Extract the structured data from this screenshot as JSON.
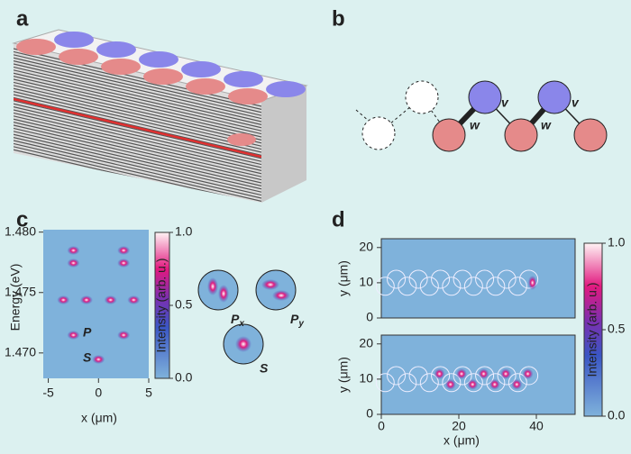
{
  "panels": {
    "a": {
      "label": "a"
    },
    "b": {
      "label": "b",
      "bond_labels": [
        "w",
        "v",
        "w",
        "v"
      ]
    },
    "c": {
      "label": "c",
      "ylabel": "Energy (eV)",
      "xlabel": "x (μm)",
      "xlim": [
        -5.5,
        5
      ],
      "xticks": [
        -5,
        0,
        5
      ],
      "ylim": [
        1.4679,
        1.4802
      ],
      "yticks": [
        {
          "value": 1.48,
          "label": "1.480"
        },
        {
          "value": 1.475,
          "label": "1.475"
        },
        {
          "value": 1.47,
          "label": "1.470"
        }
      ],
      "mode_labels": [
        "P",
        "S"
      ],
      "colorbar": {
        "label": "Intensity (arb. u.)",
        "lim": [
          0,
          1
        ],
        "ticks": [
          {
            "value": 0,
            "label": "0.0"
          },
          {
            "value": 0.5,
            "label": "0.5"
          },
          {
            "value": 1,
            "label": "1.0"
          }
        ]
      },
      "insets": [
        {
          "text": "P",
          "sub": "x"
        },
        {
          "text": "P",
          "sub": "y"
        },
        {
          "text": "S"
        }
      ]
    },
    "d": {
      "label": "d",
      "xlabel": "x (μm)",
      "xlim": [
        0,
        50
      ],
      "xticks": [
        0,
        20,
        40
      ],
      "plots": [
        {
          "ylabel": "y (μm)",
          "ylim": [
            0,
            22.5
          ],
          "yticks": [
            0,
            10,
            20
          ]
        },
        {
          "ylabel": "y (μm)",
          "ylim": [
            0,
            22.5
          ],
          "yticks": [
            0,
            10,
            20
          ]
        }
      ],
      "colorbar": {
        "label": "Intensity (arb. u.)",
        "lim": [
          0,
          1
        ],
        "ticks": [
          {
            "value": 0,
            "label": "0.0"
          },
          {
            "value": 0.5,
            "label": "0.5"
          },
          {
            "value": 1,
            "label": "1.0"
          }
        ]
      }
    }
  }
}
